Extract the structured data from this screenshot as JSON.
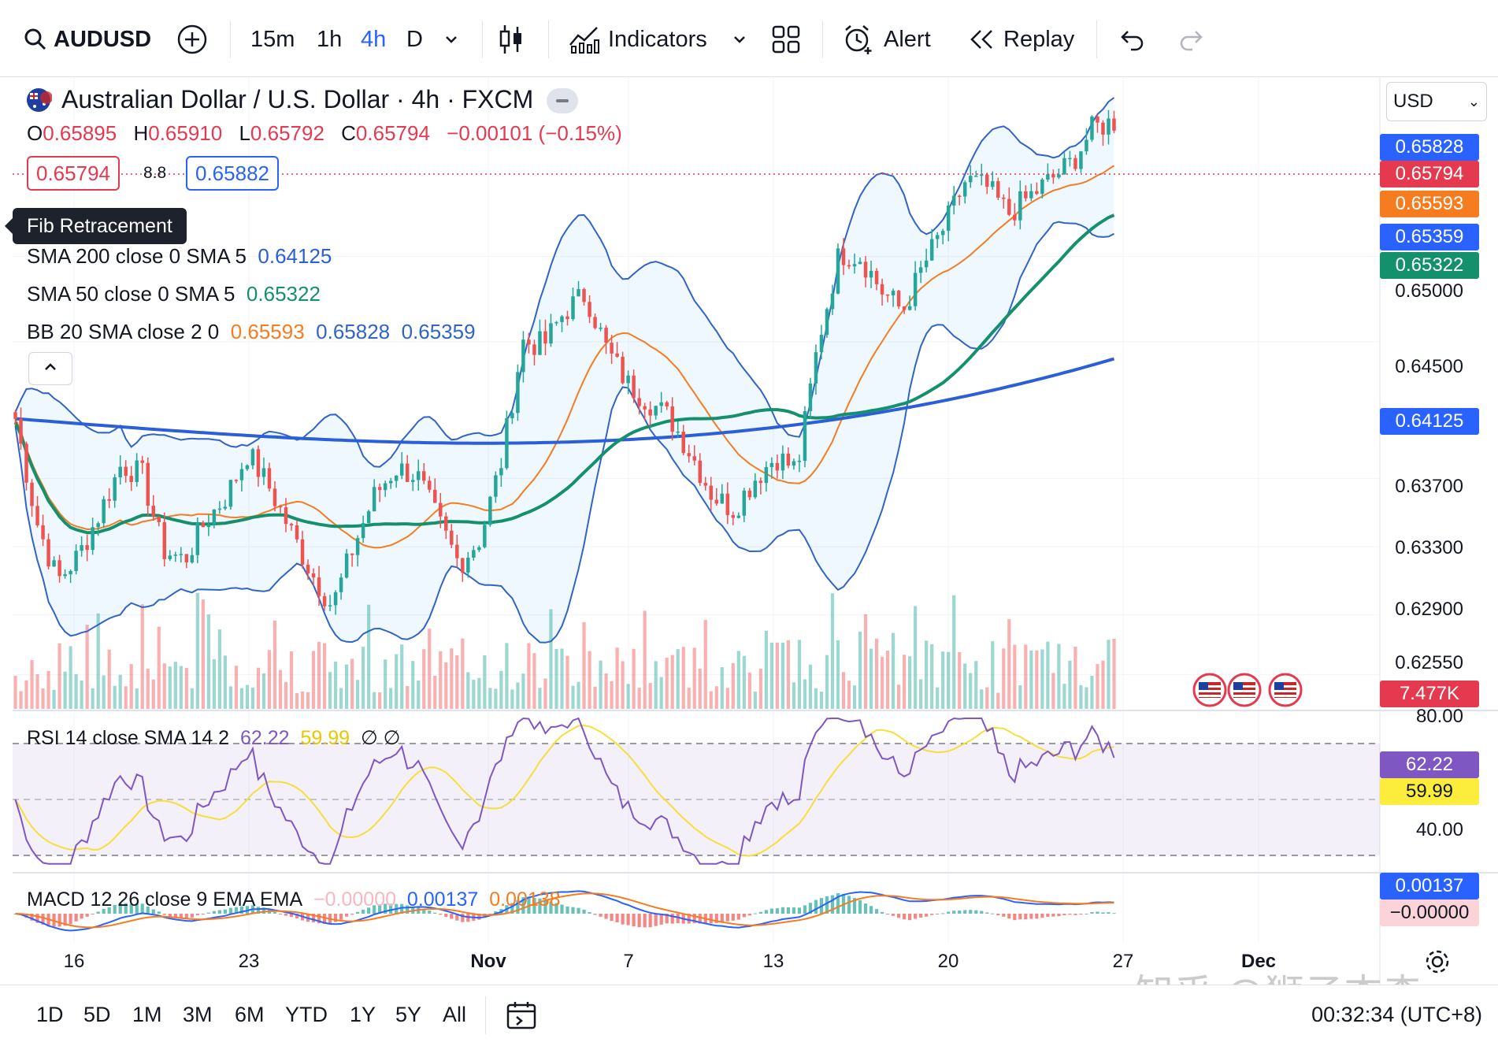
{
  "toolbar": {
    "symbol": "AUDUSD",
    "timeframes": [
      "15m",
      "1h",
      "4h",
      "D"
    ],
    "active_timeframe": "4h",
    "indicators_label": "Indicators",
    "alert_label": "Alert",
    "replay_label": "Replay"
  },
  "legend": {
    "title": "Australian Dollar / U.S. Dollar · 4h · FXCM",
    "open_key": "O",
    "open": "0.65895",
    "high_key": "H",
    "high": "0.65910",
    "low_key": "L",
    "low": "0.65792",
    "close_key": "C",
    "close": "0.65794",
    "change": "−0.00101 (−0.15%)",
    "sell_price": "0.65794",
    "spread": "8.8",
    "buy_price": "0.65882",
    "tooltip": "Fib Retracement",
    "sma200_label": "SMA 200 close 0 SMA 5",
    "sma200_value": "0.64125",
    "sma50_label": "SMA 50 close 0 SMA 5",
    "sma50_value": "0.65322",
    "bb_label": "BB 20 SMA close 2 0",
    "bb_basis": "0.65593",
    "bb_upper": "0.65828",
    "bb_lower": "0.65359"
  },
  "price_axis": {
    "currency": "USD",
    "ticks": [
      "0.65000",
      "0.64500",
      "0.63700",
      "0.63300",
      "0.62900",
      "0.62550"
    ],
    "badge_bb_upper": "0.65828",
    "badge_last": "0.65794",
    "badge_bb_basis": "0.65593",
    "badge_bb_lower": "0.65359",
    "badge_sma50": "0.65322",
    "badge_sma200": "0.64125",
    "badge_volume": "7.477K"
  },
  "rsi": {
    "label": "RSI 14 close SMA 14 2",
    "value": "62.22",
    "sma_value": "59.99",
    "extra": "∅ ∅",
    "axis_top": "80.00",
    "axis_mid": "40.00"
  },
  "macd": {
    "label": "MACD 12 26 close 9 EMA EMA",
    "hist": "−0.00000",
    "macd": "0.00137",
    "signal": "0.00138"
  },
  "time_axis": [
    "16",
    "23",
    "Nov",
    "7",
    "13",
    "20",
    "27",
    "Dec"
  ],
  "ranges": [
    "1D",
    "5D",
    "1M",
    "3M",
    "6M",
    "YTD",
    "1Y",
    "5Y",
    "All"
  ],
  "clock": "00:32:34 (UTC+8)",
  "watermark": "知乎 @狮子杰森",
  "colors": {
    "up": "#26a69a",
    "down": "#ef5350",
    "sma200": "#2b5fd9",
    "sma50": "#15906c",
    "bb_basis": "#f57c1f",
    "bb_band": "#3164c7",
    "rsi": "#7e57c2",
    "rsi_sma": "#f7df3b",
    "accent": "#2962ff"
  },
  "chart_data": {
    "type": "candlestick",
    "title": "Australian Dollar / U.S. Dollar · 4h · FXCM",
    "ylim": [
      0.6235,
      0.6605
    ],
    "y_ticks": [
      0.6255,
      0.629,
      0.633,
      0.637,
      0.645,
      0.65
    ],
    "x_ticks": [
      "16",
      "23",
      "Nov",
      "7",
      "13",
      "20",
      "27",
      "Dec"
    ],
    "series": [
      {
        "name": "SMA 200 close 0 SMA 5",
        "last": 0.64125
      },
      {
        "name": "SMA 50 close 0 SMA 5",
        "last": 0.65322
      },
      {
        "name": "BB 20 SMA close 2 0",
        "basis": 0.65593,
        "upper": 0.65828,
        "lower": 0.65359
      }
    ],
    "close_path": [
      0.6405,
      0.6345,
      0.631,
      0.6325,
      0.635,
      0.6378,
      0.6372,
      0.6328,
      0.6322,
      0.6345,
      0.636,
      0.6385,
      0.6365,
      0.634,
      0.6315,
      0.6295,
      0.633,
      0.636,
      0.6376,
      0.6372,
      0.6345,
      0.632,
      0.6335,
      0.638,
      0.645,
      0.6448,
      0.6468,
      0.6478,
      0.6445,
      0.6425,
      0.6415,
      0.6405,
      0.6384,
      0.636,
      0.6352,
      0.637,
      0.6383,
      0.6375,
      0.645,
      0.6502,
      0.65,
      0.648,
      0.6468,
      0.6495,
      0.6518,
      0.6545,
      0.654,
      0.6525,
      0.6535,
      0.6545,
      0.6555,
      0.6575,
      0.6579
    ],
    "rsi": {
      "last": 62.22,
      "sma_last": 59.99,
      "levels": [
        70,
        50,
        30
      ]
    },
    "macd": {
      "macd": 0.00137,
      "signal": 0.00138,
      "hist": -0.0
    }
  }
}
